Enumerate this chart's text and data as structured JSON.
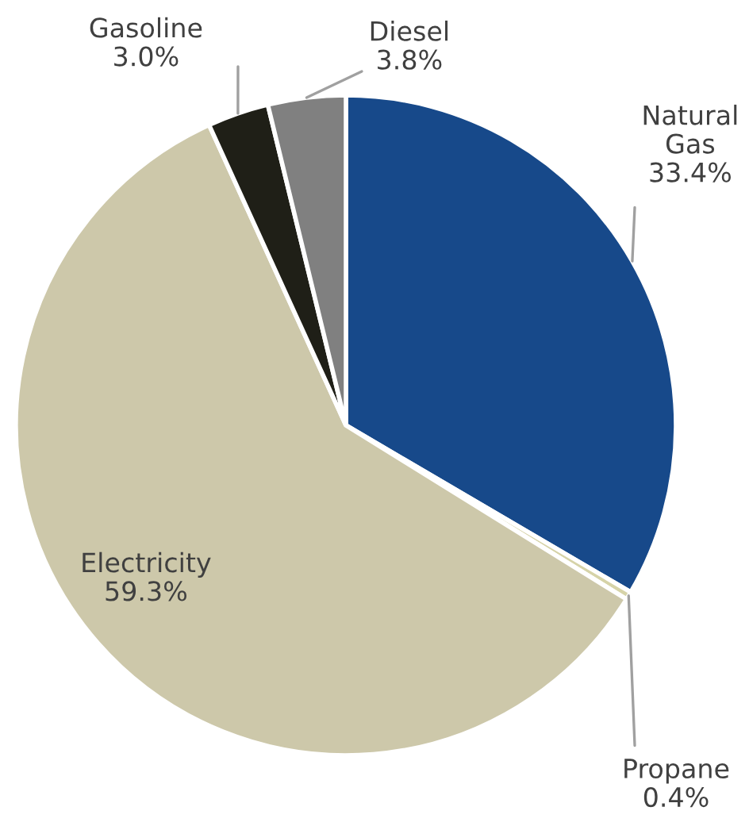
{
  "chart_data": {
    "type": "pie",
    "categories": [
      "Natural Gas",
      "Propane",
      "Electricity",
      "Gasoline",
      "Diesel"
    ],
    "values": [
      33.4,
      0.4,
      59.3,
      3.0,
      3.8
    ],
    "colors": [
      "#17498a",
      "#d6d3a8",
      "#cdc8aa",
      "#1f1f17",
      "#808080"
    ],
    "value_labels": [
      "33.4%",
      "0.4%",
      "59.3%",
      "3.0%",
      "3.8%"
    ]
  }
}
